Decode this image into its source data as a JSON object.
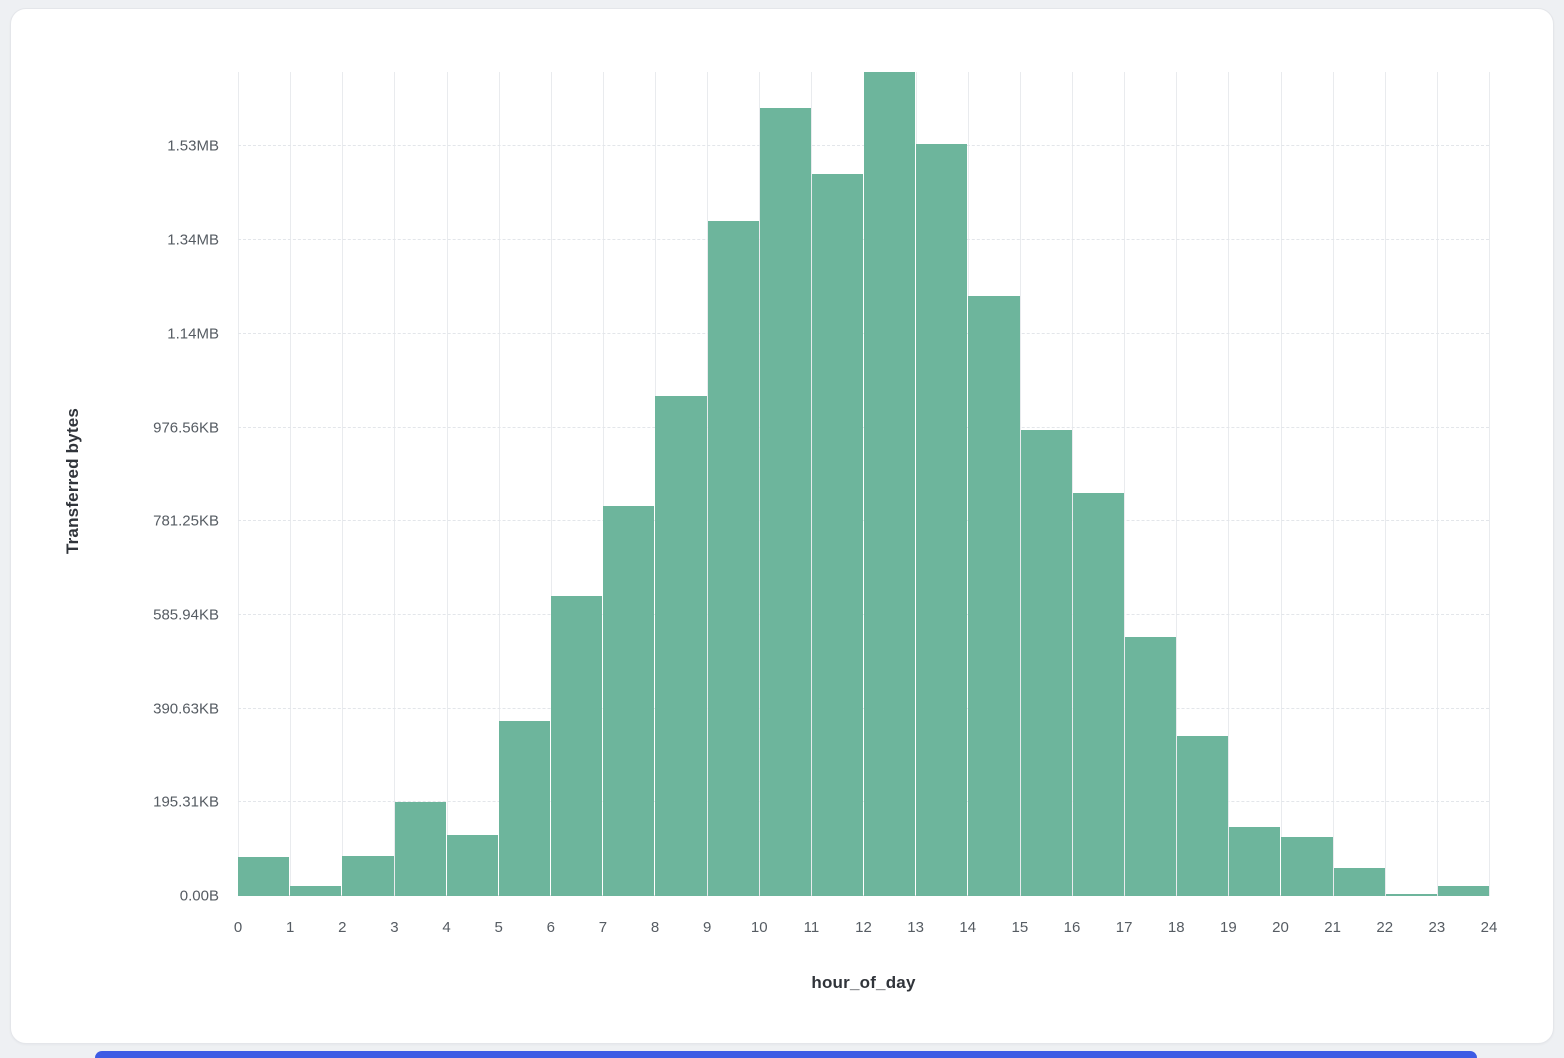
{
  "page": {
    "background_color": "#eef0f3",
    "card_background": "#ffffff",
    "bottom_strip_color": "#3d5be4"
  },
  "chart_data": {
    "type": "bar",
    "title": "",
    "xlabel": "hour_of_day",
    "ylabel": "Transferred bytes",
    "bar_color": "#6db59c",
    "grid": true,
    "legend": false,
    "categories": [
      0,
      1,
      2,
      3,
      4,
      5,
      6,
      7,
      8,
      9,
      10,
      11,
      12,
      13,
      14,
      15,
      16,
      17,
      18,
      19,
      20,
      21,
      22,
      23
    ],
    "values": [
      83000,
      21000,
      85000,
      200000,
      130000,
      373000,
      641000,
      833000,
      1067000,
      1440000,
      1683000,
      1542000,
      1759000,
      1606000,
      1280000,
      995000,
      860000,
      552000,
      341000,
      147000,
      126000,
      60000,
      4000,
      21000
    ],
    "x_tick_labels": [
      "0",
      "1",
      "2",
      "3",
      "4",
      "5",
      "6",
      "7",
      "8",
      "9",
      "10",
      "11",
      "12",
      "13",
      "14",
      "15",
      "16",
      "17",
      "18",
      "19",
      "20",
      "21",
      "22",
      "23",
      "24"
    ],
    "y_ticks": [
      {
        "label": "0.00B",
        "value": 0
      },
      {
        "label": "195.31KB",
        "value": 200000
      },
      {
        "label": "390.63KB",
        "value": 400000
      },
      {
        "label": "585.94KB",
        "value": 600000
      },
      {
        "label": "781.25KB",
        "value": 800000
      },
      {
        "label": "976.56KB",
        "value": 1000000
      },
      {
        "label": "1.14MB",
        "value": 1200000
      },
      {
        "label": "1.34MB",
        "value": 1400000
      },
      {
        "label": "1.53MB",
        "value": 1600000
      }
    ],
    "ylim": [
      0,
      1759000
    ],
    "ymax": 1759000
  }
}
